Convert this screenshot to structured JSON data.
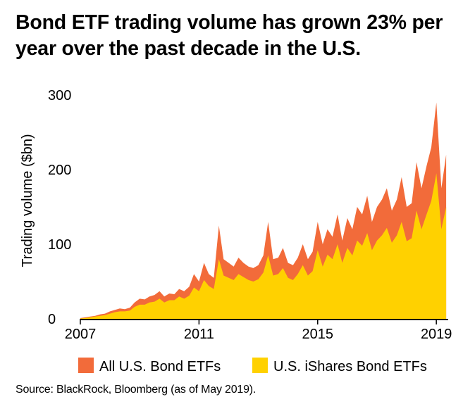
{
  "title": {
    "line1": "Bond ETF trading volume has grown 23% per",
    "line2": "year over the past decade in the U.S."
  },
  "source": "Source: BlackRock, Bloomberg (as of May 2019).",
  "colors": {
    "all_bond": "#f26b3a",
    "ishares": "#ffd100",
    "axis": "#000000"
  },
  "chart_data": {
    "type": "area",
    "title": "Bond ETF trading volume has grown 23% per year over the past decade in the U.S.",
    "xlabel": "",
    "ylabel": "Trading volume ($bn)",
    "xlim": [
      2007,
      2019.4
    ],
    "ylim": [
      0,
      300
    ],
    "x_ticks": [
      2007,
      2011,
      2015,
      2019
    ],
    "x_tick_labels": [
      "2007",
      "2011",
      "2015",
      "2019"
    ],
    "y_ticks": [
      0,
      100,
      200,
      300
    ],
    "y_tick_labels": [
      "0",
      "100",
      "200",
      "300"
    ],
    "grid": false,
    "legend_position": "bottom",
    "x": [
      2007.0,
      2007.17,
      2007.33,
      2007.5,
      2007.67,
      2007.83,
      2008.0,
      2008.17,
      2008.33,
      2008.5,
      2008.67,
      2008.83,
      2009.0,
      2009.17,
      2009.33,
      2009.5,
      2009.67,
      2009.83,
      2010.0,
      2010.17,
      2010.33,
      2010.5,
      2010.67,
      2010.83,
      2011.0,
      2011.17,
      2011.33,
      2011.5,
      2011.67,
      2011.83,
      2012.0,
      2012.17,
      2012.33,
      2012.5,
      2012.67,
      2012.83,
      2013.0,
      2013.17,
      2013.33,
      2013.5,
      2013.67,
      2013.83,
      2014.0,
      2014.17,
      2014.33,
      2014.5,
      2014.67,
      2014.83,
      2015.0,
      2015.17,
      2015.33,
      2015.5,
      2015.67,
      2015.83,
      2016.0,
      2016.17,
      2016.33,
      2016.5,
      2016.67,
      2016.83,
      2017.0,
      2017.17,
      2017.33,
      2017.5,
      2017.67,
      2017.83,
      2018.0,
      2018.17,
      2018.33,
      2018.5,
      2018.67,
      2018.83,
      2019.0,
      2019.17,
      2019.33
    ],
    "series": [
      {
        "name": "All U.S. Bond ETFs",
        "values": [
          1,
          2,
          3,
          4,
          6,
          7,
          10,
          12,
          14,
          13,
          15,
          22,
          27,
          26,
          30,
          32,
          37,
          30,
          34,
          33,
          40,
          37,
          43,
          60,
          50,
          75,
          60,
          55,
          125,
          80,
          75,
          70,
          82,
          75,
          70,
          68,
          72,
          85,
          130,
          80,
          82,
          95,
          75,
          72,
          82,
          100,
          80,
          90,
          130,
          100,
          120,
          110,
          140,
          105,
          135,
          120,
          150,
          140,
          165,
          130,
          150,
          160,
          175,
          145,
          160,
          190,
          150,
          155,
          210,
          175,
          205,
          230,
          290,
          175,
          220
        ]
      },
      {
        "name": "U.S. iShares Bond ETFs",
        "values": [
          0.5,
          1,
          2,
          3,
          4,
          5,
          7,
          9,
          10,
          10,
          11,
          16,
          19,
          19,
          22,
          23,
          27,
          22,
          25,
          25,
          30,
          27,
          31,
          42,
          37,
          52,
          44,
          40,
          80,
          58,
          55,
          52,
          60,
          56,
          52,
          50,
          53,
          62,
          85,
          58,
          60,
          68,
          55,
          52,
          60,
          72,
          58,
          64,
          92,
          70,
          86,
          80,
          100,
          75,
          95,
          85,
          105,
          98,
          115,
          92,
          105,
          112,
          122,
          102,
          112,
          130,
          104,
          108,
          145,
          120,
          140,
          158,
          195,
          120,
          150
        ]
      }
    ],
    "legend": [
      "All U.S. Bond ETFs",
      "U.S. iShares Bond ETFs"
    ]
  }
}
